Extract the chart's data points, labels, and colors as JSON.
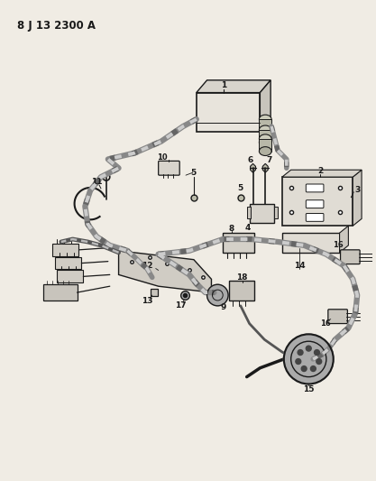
{
  "title": "8 J 13 2300 A",
  "bg_color": "#f0ece4",
  "line_color": "#1a1a1a",
  "text_color": "#1a1a1a",
  "fig_width": 4.17,
  "fig_height": 5.33,
  "dpi": 100
}
